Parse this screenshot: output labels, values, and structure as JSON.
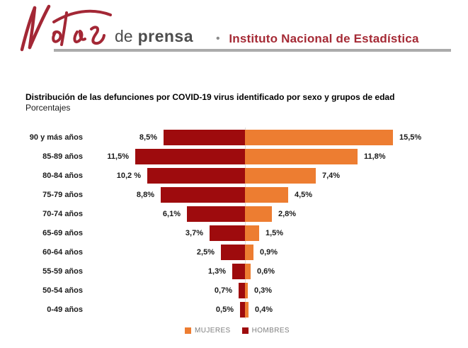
{
  "header": {
    "logo_script": "Notas",
    "logo_de": "de",
    "logo_prensa": "prensa",
    "separator_bullet": "•",
    "institute_name": "Instituto Nacional de Estadística",
    "brand_red": "#A52A35",
    "logo_red": "#A32735"
  },
  "chart": {
    "title": "Distribución de las defunciones por COVID-19 virus identificado por sexo y grupos de edad",
    "subtitle": "Porcentajes"
  },
  "legend": {
    "items": [
      {
        "label": "MUJERES",
        "color": "#ED7D31"
      },
      {
        "label": "HOMBRES",
        "color": "#9E0B0D"
      }
    ]
  },
  "chart_data": {
    "type": "bar",
    "variant": "diverging-horizontal-pyramid",
    "title": "Distribución de las defunciones por COVID-19 virus identificado por sexo y grupos de edad",
    "subtitle": "Porcentajes",
    "unit": "%",
    "grid": false,
    "legend_position": "bottom-center",
    "categories": [
      "90 y más años",
      "85-89 años",
      "80-84 años",
      "75-79 años",
      "70-74 años",
      "65-69 años",
      "60-64 años",
      "55-59 años",
      "50-54 años",
      "0-49 años"
    ],
    "series": [
      {
        "name": "HOMBRES",
        "side": "left",
        "color": "#9E0B0D",
        "values": [
          8.5,
          11.5,
          10.2,
          8.8,
          6.1,
          3.7,
          2.5,
          1.3,
          0.7,
          0.5
        ],
        "labels": [
          "8,5%",
          "11,5%",
          "10,2 %",
          "8,8%",
          "6,1%",
          "3,7%",
          "2,5%",
          "1,3%",
          "0,7%",
          "0,5%"
        ]
      },
      {
        "name": "MUJERES",
        "side": "right",
        "color": "#ED7D31",
        "values": [
          15.5,
          11.8,
          7.4,
          4.5,
          2.8,
          1.5,
          0.9,
          0.6,
          0.3,
          0.4
        ],
        "labels": [
          "15,5%",
          "11,8%",
          "7,4%",
          "4,5%",
          "2,8%",
          "1,5%",
          "0,9%",
          "0,6%",
          "0,3%",
          "0,4%"
        ]
      }
    ],
    "value_axis": {
      "shown": false,
      "center_at_zero": true,
      "value_labels_at_bar_ends": true
    }
  }
}
